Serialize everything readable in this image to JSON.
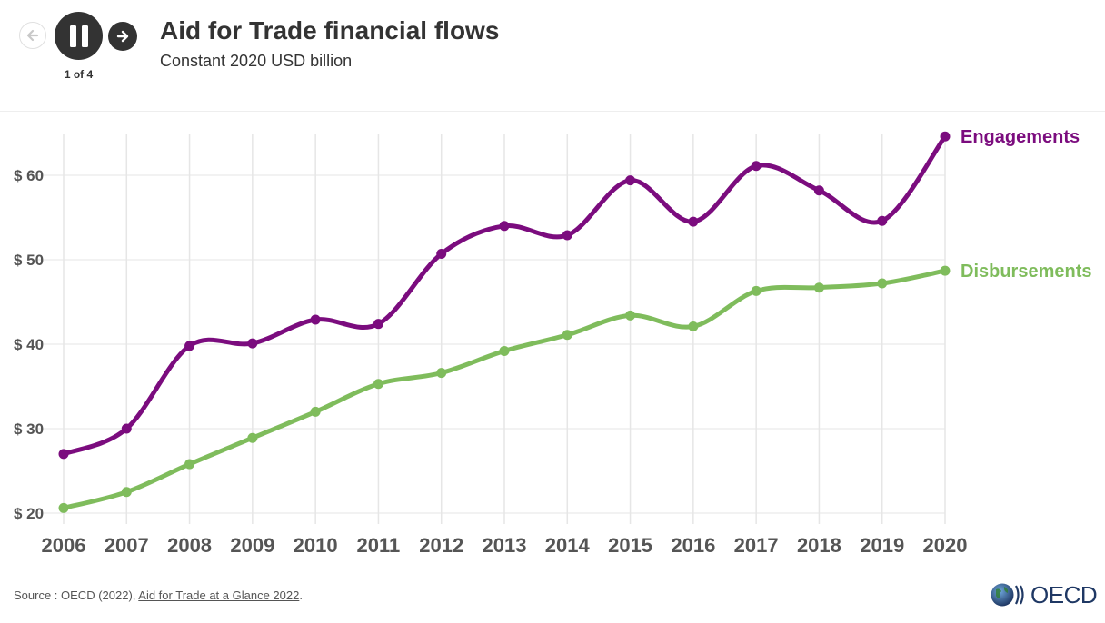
{
  "header": {
    "title": "Aid for Trade financial flows",
    "subtitle": "Constant 2020 USD billion",
    "step_label": "1 of 4"
  },
  "footer": {
    "source_prefix": "Source : OECD (2022), ",
    "source_link": "Aid for Trade at a Glance 2022",
    "source_suffix": ".",
    "logo_text": "OECD"
  },
  "icons": {
    "back": "arrow-left-icon",
    "pause": "pause-icon",
    "next": "arrow-right-icon",
    "logo": "oecd-globe-icon"
  },
  "colors": {
    "engagements": "#7b0c7e",
    "disbursements": "#7fbc5c",
    "grid": "#e6e6e6",
    "axis_text": "#555555",
    "dark": "#333333"
  },
  "chart_data": {
    "type": "line",
    "x": [
      2006,
      2007,
      2008,
      2009,
      2010,
      2011,
      2012,
      2013,
      2014,
      2015,
      2016,
      2017,
      2018,
      2019,
      2020
    ],
    "tick_labels": [
      "2006",
      "2007",
      "2008",
      "2009",
      "2010",
      "2011",
      "2012",
      "2013",
      "2014",
      "2015",
      "2016",
      "2017",
      "2018",
      "2019",
      "2020"
    ],
    "ylim": [
      20,
      65
    ],
    "yticks": [
      20,
      30,
      40,
      50,
      60
    ],
    "ytick_labels": [
      "$ 20",
      "$ 30",
      "$ 40",
      "$ 50",
      "$ 60"
    ],
    "grid": true,
    "legend": "line-end labels",
    "series": [
      {
        "name": "Engagements",
        "color": "#7b0c7e",
        "values": [
          27.0,
          30.0,
          39.8,
          40.1,
          42.9,
          42.4,
          50.7,
          54.0,
          52.9,
          59.4,
          54.5,
          61.1,
          58.2,
          54.6,
          64.6
        ]
      },
      {
        "name": "Disbursements",
        "color": "#7fbc5c",
        "values": [
          20.6,
          22.5,
          25.8,
          28.9,
          32.0,
          35.3,
          36.6,
          39.2,
          41.1,
          43.4,
          42.1,
          46.3,
          46.7,
          47.2,
          48.7
        ]
      }
    ]
  }
}
